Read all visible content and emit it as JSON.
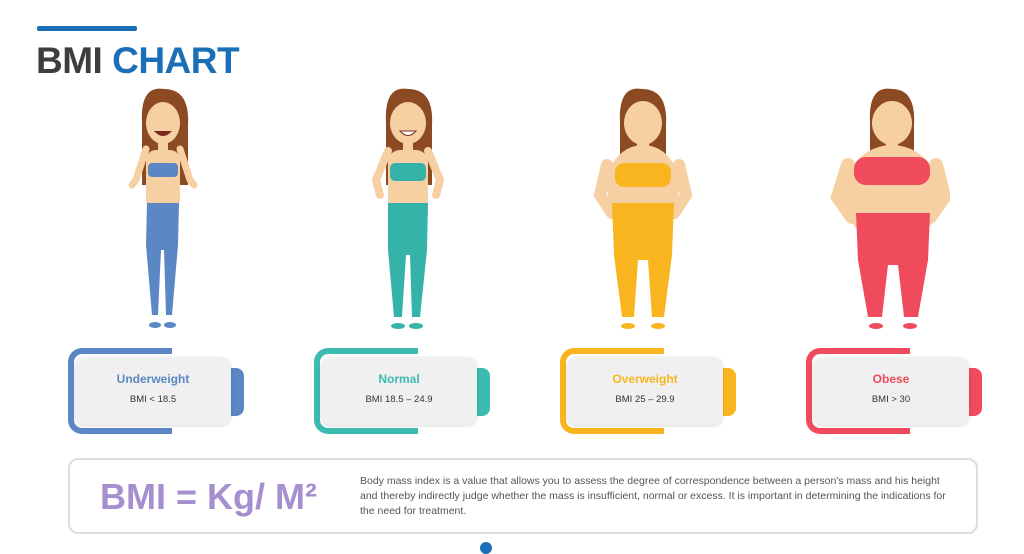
{
  "title": {
    "part1": "BMI",
    "part2": "CHART"
  },
  "categories": [
    {
      "label": "Underweight",
      "range": "BMI < 18.5",
      "color": "#5b87c5",
      "outfit": "#5b87c5",
      "top": "#5b87c5"
    },
    {
      "label": "Normal",
      "range": "BMI 18.5 – 24.9",
      "color": "#3dbbb0",
      "outfit": "#35b3a8",
      "top": "#35b3a8"
    },
    {
      "label": "Overweight",
      "range": "BMI 25 – 29.9",
      "color": "#f8b51f",
      "outfit": "#f8b51f",
      "top": "#f8b51f"
    },
    {
      "label": "Obese",
      "range": "BMI > 30",
      "color": "#ef4b5c",
      "outfit": "#ef4b5c",
      "top": "#ef4b5c"
    }
  ],
  "formula": "BMI = Kg/ M²",
  "description": "Body mass index is a value that allows you to assess the degree of correspondence between a person's mass and his height and thereby indirectly judge whether the mass is insufficient, normal or excess. It is important in determining the indications for the need for treatment.",
  "colors": {
    "brand": "#1a6fb7",
    "heading": "#3d3d3d",
    "formula": "#a58fcf",
    "hair": "#8b4a22",
    "skin": "#f6cfa3"
  }
}
